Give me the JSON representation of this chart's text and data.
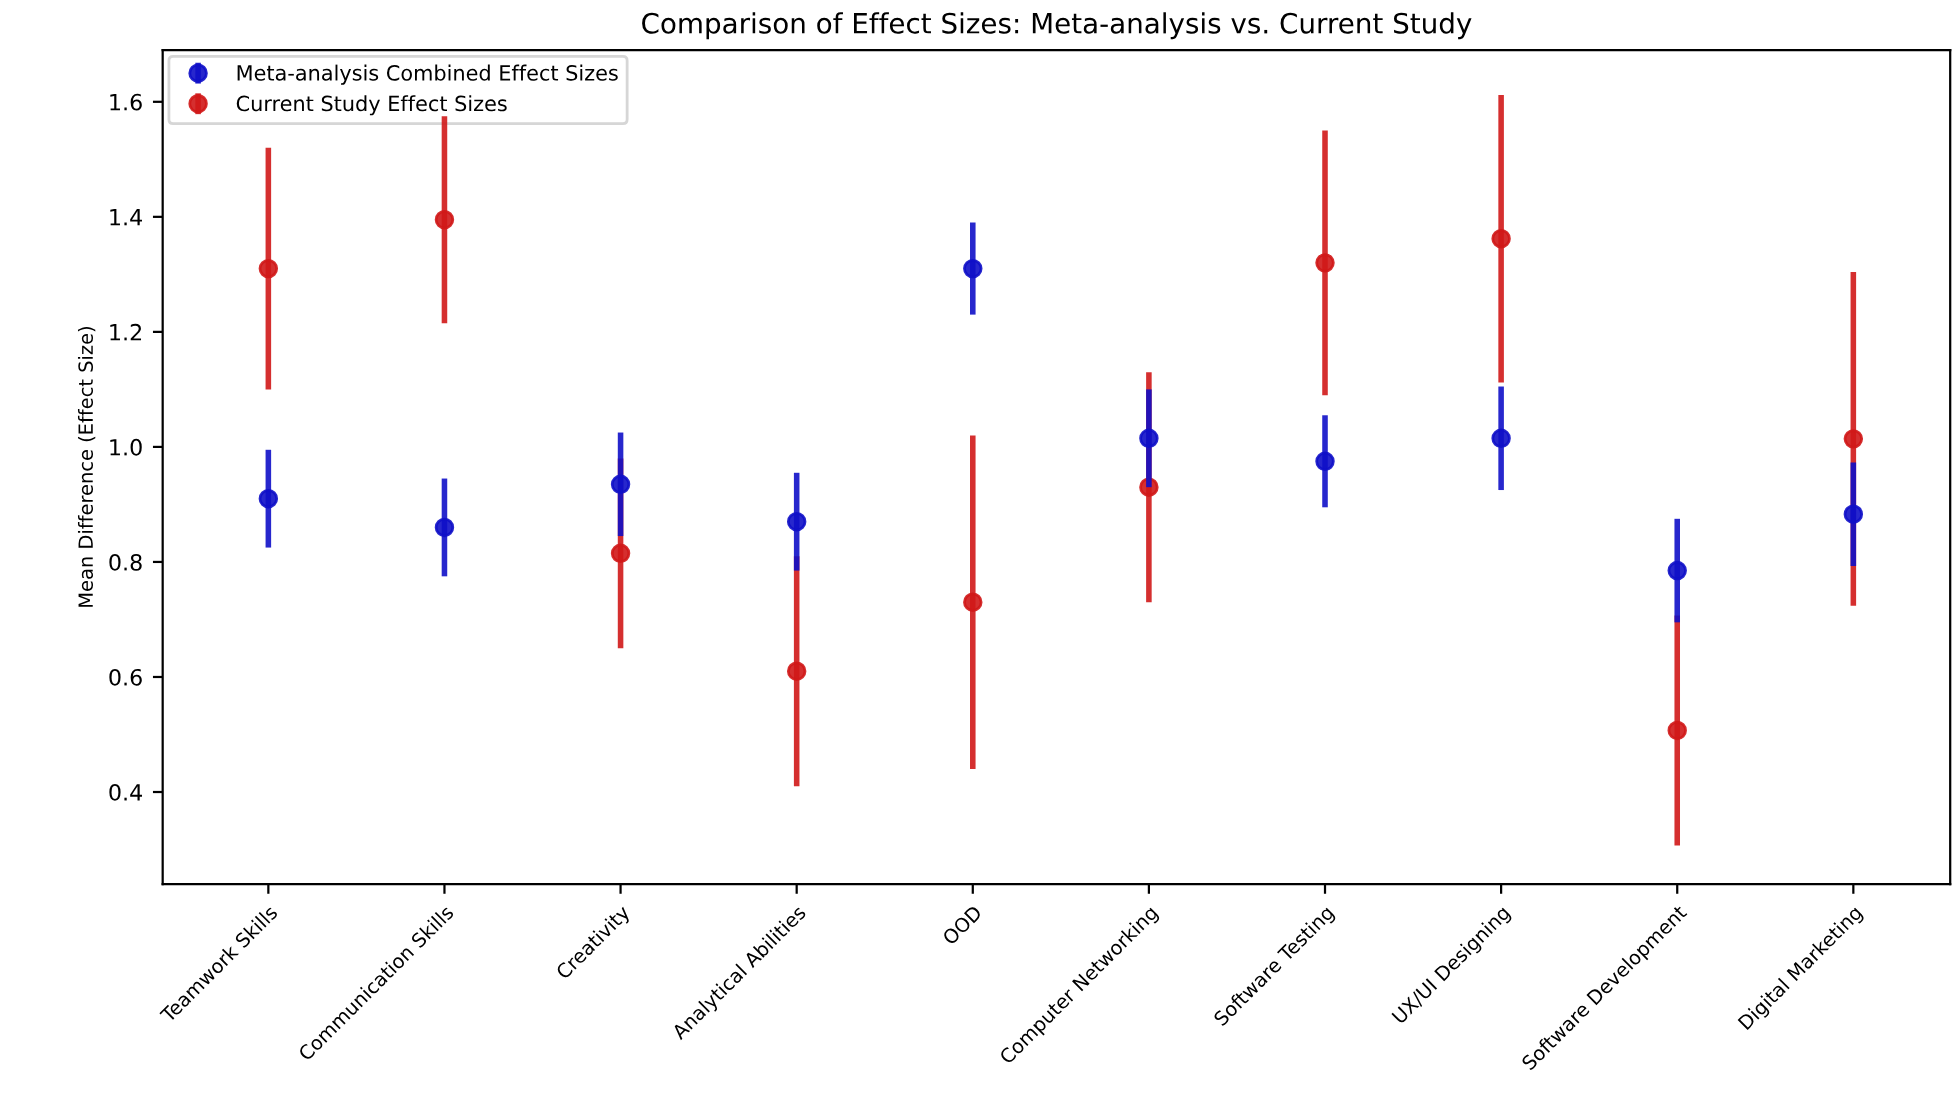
{
  "chart_data": {
    "type": "scatter",
    "title": "Comparison of Effect Sizes: Meta-analysis vs. Current Study",
    "ylabel": "Mean Difference (Effect Size)",
    "categories": [
      "Teamwork Skills",
      "Communication Skills",
      "Creativity",
      "Analytical Abilities",
      "OOD",
      "Computer Networking",
      "Software Testing",
      "UX/UI Designing",
      "Software Development",
      "Digital Marketing"
    ],
    "series": [
      {
        "name": "Meta-analysis Combined Effect Sizes",
        "color": "#1010c8",
        "values": [
          0.91,
          0.86,
          0.935,
          0.87,
          1.31,
          1.015,
          0.975,
          1.015,
          0.785,
          0.883
        ],
        "errors": [
          0.085,
          0.085,
          0.09,
          0.085,
          0.08,
          0.085,
          0.08,
          0.09,
          0.09,
          0.09
        ]
      },
      {
        "name": "Current Study Effect Sizes",
        "color": "#d01818",
        "values": [
          1.31,
          1.395,
          0.815,
          0.61,
          0.73,
          0.93,
          1.32,
          1.362,
          0.507,
          1.014
        ],
        "errors": [
          0.21,
          0.18,
          0.165,
          0.2,
          0.29,
          0.2,
          0.23,
          0.25,
          0.2,
          0.29
        ]
      }
    ],
    "ylim": [
      0.24,
      1.69
    ],
    "yticks": [
      0.4,
      0.6,
      0.8,
      {
        "value": 1.0,
        "label": "1.0"
      },
      1.2,
      1.4,
      1.6
    ],
    "grid": false,
    "legend": "top left",
    "marker": "circle"
  }
}
